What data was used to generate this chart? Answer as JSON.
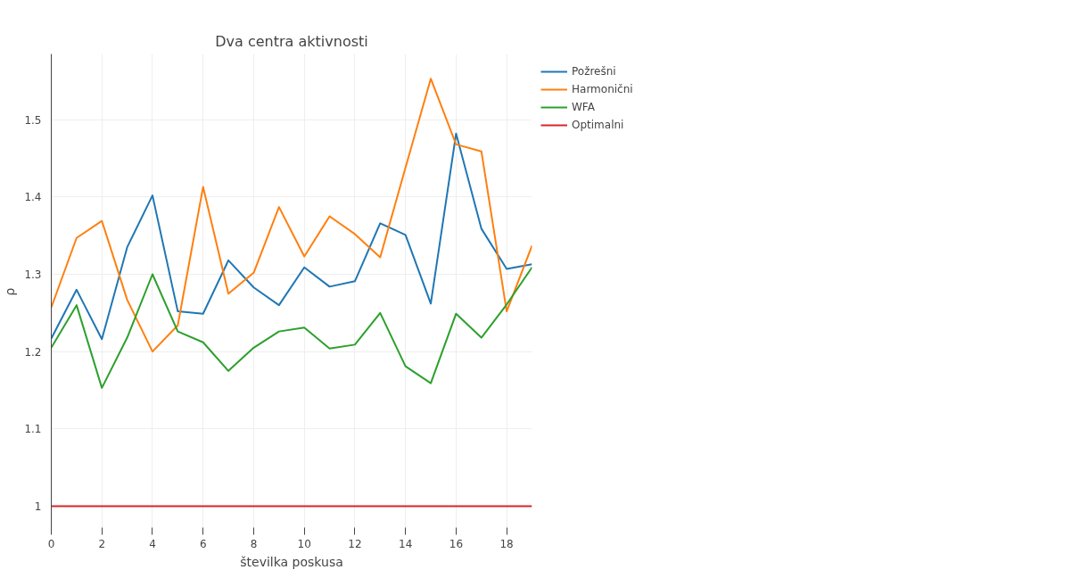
{
  "chart_data": {
    "type": "line",
    "title": "Dva centra aktivnosti",
    "xlabel": "številka poskusa",
    "ylabel": "ρ",
    "x": [
      0,
      1,
      2,
      3,
      4,
      5,
      6,
      7,
      8,
      9,
      10,
      11,
      12,
      13,
      14,
      15,
      16,
      17,
      18,
      19
    ],
    "series": [
      {
        "name": "Požrešni",
        "color": "#1f77b4",
        "values": [
          1.217,
          1.28,
          1.216,
          1.335,
          1.402,
          1.252,
          1.249,
          1.318,
          1.283,
          1.26,
          1.309,
          1.284,
          1.291,
          1.366,
          1.351,
          1.262,
          1.482,
          1.359,
          1.307,
          1.313
        ]
      },
      {
        "name": "Harmonični",
        "color": "#ff7f0e",
        "values": [
          1.257,
          1.347,
          1.369,
          1.267,
          1.2,
          1.234,
          1.413,
          1.275,
          1.302,
          1.387,
          1.323,
          1.375,
          1.352,
          1.322,
          1.438,
          1.553,
          1.468,
          1.459,
          1.252,
          1.337
        ]
      },
      {
        "name": "WFA",
        "color": "#2ca02c",
        "values": [
          1.205,
          1.26,
          1.153,
          1.218,
          1.3,
          1.226,
          1.212,
          1.175,
          1.205,
          1.226,
          1.231,
          1.204,
          1.209,
          1.25,
          1.181,
          1.159,
          1.249,
          1.218,
          1.261,
          1.309
        ]
      },
      {
        "name": "Optimalni",
        "color": "#d62728",
        "values": [
          1,
          1,
          1,
          1,
          1,
          1,
          1,
          1,
          1,
          1,
          1,
          1,
          1,
          1,
          1,
          1,
          1,
          1,
          1,
          1
        ]
      }
    ],
    "xlim": [
      0,
      19
    ],
    "ylim": [
      0.97,
      1.585
    ],
    "xticks": [
      0,
      2,
      4,
      6,
      8,
      10,
      12,
      14,
      16,
      18
    ],
    "yticks": [
      1,
      1.1,
      1.2,
      1.3,
      1.4,
      1.5
    ],
    "grid": true,
    "legend": "top right",
    "marker": "none",
    "line_style": "solid"
  }
}
